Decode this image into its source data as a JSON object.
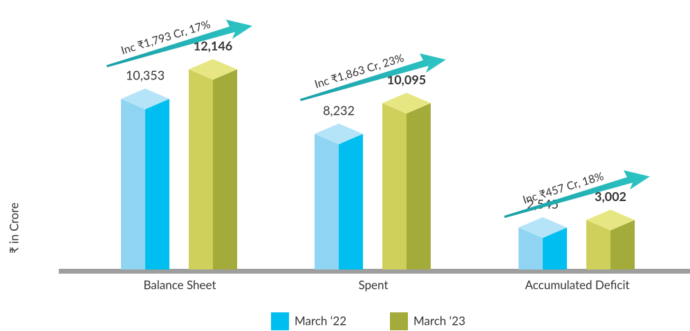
{
  "chart_data": {
    "type": "bar3d",
    "y_label": "₹ in Crore",
    "categories": [
      "Balance Sheet",
      "Spent",
      "Accumulated  Deficit"
    ],
    "series": [
      {
        "name": "March ‘22",
        "color": "#00bff0",
        "values": [
          10353,
          8232,
          2545
        ],
        "value_labels": [
          "10,353",
          "8,232",
          "2,545"
        ]
      },
      {
        "name": "March ‘23",
        "color": "#a3ab3a",
        "values": [
          12146,
          10095,
          3002
        ],
        "value_labels": [
          "12,146",
          "10,095",
          "3,002"
        ]
      }
    ],
    "ylim": [
      0,
      13000
    ],
    "annotations": [
      "Inc ₹1,793 Cr, 17%",
      "Inc ₹1,863 Cr, 23%",
      "Inc ₹457 Cr, 18%"
    ],
    "legend": "bottom"
  }
}
